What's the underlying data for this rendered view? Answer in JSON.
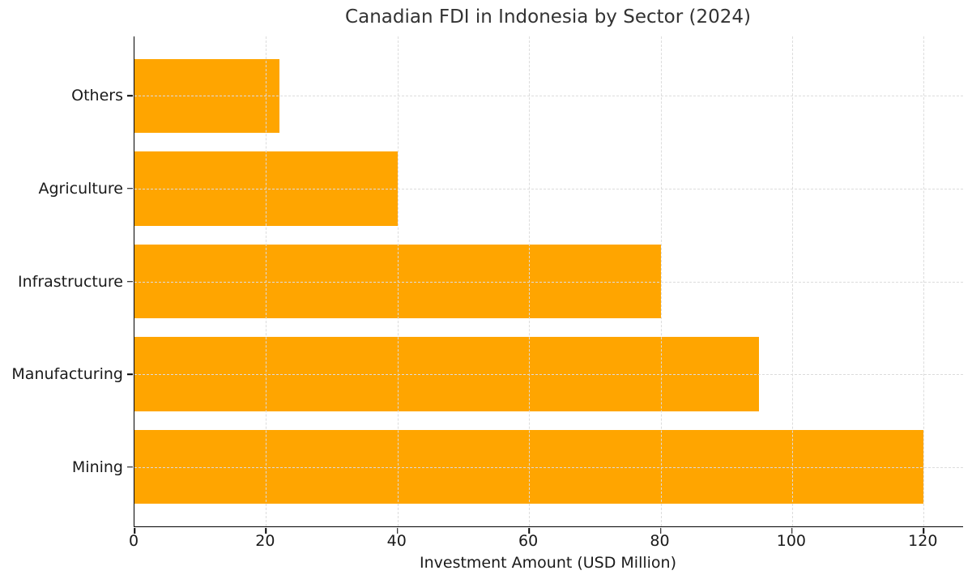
{
  "chart_data": {
    "type": "bar",
    "orientation": "horizontal",
    "title": "Canadian FDI in Indonesia by Sector (2024)",
    "xlabel": "Investment Amount (USD Million)",
    "ylabel": "",
    "categories": [
      "Others",
      "Agriculture",
      "Infrastructure",
      "Manufacturing",
      "Mining"
    ],
    "values": [
      22,
      40,
      80,
      95,
      120
    ],
    "x_ticks": [
      0,
      20,
      40,
      60,
      80,
      100,
      120
    ],
    "xlim": [
      0,
      126
    ],
    "bar_width": 0.8,
    "grid": true,
    "grid_style": "dashed",
    "grid_above_bars": true,
    "legend": "none",
    "colors": {
      "bar": "#FFA500",
      "grid": "#dcdcdc",
      "spine": "#000000",
      "tick_text": "#1a1a1a",
      "title_text": "#333333",
      "background": "#ffffff"
    }
  }
}
